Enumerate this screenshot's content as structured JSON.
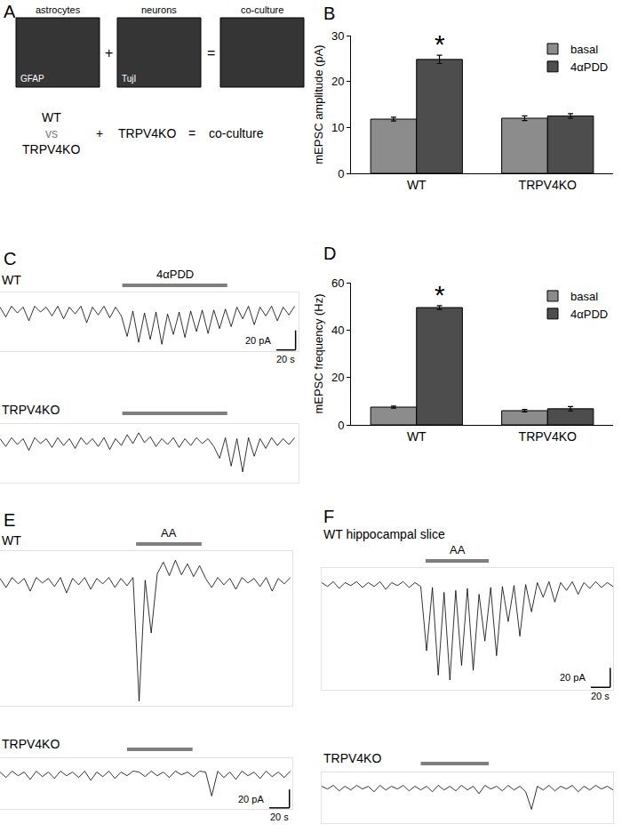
{
  "panel_a": {
    "label": "A",
    "images": [
      {
        "title": "astrocytes",
        "stain": "GFAP"
      },
      {
        "title": "neurons",
        "stain": "TujI"
      },
      {
        "title": "co-culture"
      }
    ],
    "image_operators": [
      "+",
      "="
    ],
    "scheme": {
      "left": [
        "WT",
        "vs",
        "TRPV4KO"
      ],
      "operators": [
        "+",
        "="
      ],
      "middle": "TRPV4KO",
      "result": "co-culture"
    }
  },
  "chart_data": [
    {
      "type": "bar",
      "panel": "B",
      "ylabel": "mEPSC amplitude (pA)",
      "categories": [
        "WT",
        "TRPV4KO"
      ],
      "series": [
        {
          "name": "basal",
          "color": "#8c8c8c",
          "values": [
            11.8,
            12.0
          ],
          "errors": [
            0.4,
            0.5
          ]
        },
        {
          "name": "4αPDD",
          "color": "#4d4d4d",
          "values": [
            24.8,
            12.5
          ],
          "errors": [
            0.9,
            0.5
          ]
        }
      ],
      "ylim": [
        0,
        30
      ],
      "yticks": [
        0,
        10,
        20,
        30
      ],
      "grid": false,
      "legend": "top right",
      "annotations": [
        {
          "text": "*",
          "category": "WT",
          "series": "4αPDD"
        }
      ]
    },
    {
      "type": "bar",
      "panel": "D",
      "ylabel": "mEPSC frequency (Hz)",
      "categories": [
        "WT",
        "TRPV4KO"
      ],
      "series": [
        {
          "name": "basal",
          "color": "#8c8c8c",
          "values": [
            7.5,
            6.0
          ],
          "errors": [
            0.4,
            0.5
          ]
        },
        {
          "name": "4αPDD",
          "color": "#4d4d4d",
          "values": [
            49.5,
            6.8
          ],
          "errors": [
            0.8,
            0.9
          ]
        }
      ],
      "ylim": [
        0,
        60
      ],
      "yticks": [
        0,
        20,
        40,
        60
      ],
      "grid": false,
      "legend": "top right",
      "annotations": [
        {
          "text": "*",
          "category": "WT",
          "series": "4αPDD"
        }
      ]
    },
    {
      "type": "line",
      "panel": "C",
      "title": "WT",
      "color": "#000000",
      "tick_labels": false,
      "xlim": [
        0,
        310
      ],
      "ylim": [
        -45,
        15
      ],
      "treatment": {
        "label": "4αPDD",
        "start": 127,
        "end": 236
      },
      "scalebar": {
        "x": 20,
        "y": 20,
        "x_label": "20 s",
        "y_label": "20 pA"
      },
      "x": [
        0,
        6,
        12,
        18,
        24,
        30,
        36,
        42,
        48,
        54,
        60,
        66,
        72,
        78,
        84,
        90,
        96,
        102,
        108,
        114,
        120,
        126,
        132,
        138,
        144,
        150,
        156,
        162,
        168,
        174,
        180,
        186,
        192,
        198,
        204,
        210,
        216,
        222,
        228,
        234,
        240,
        246,
        252,
        258,
        264,
        270,
        276,
        282,
        288,
        294,
        300,
        306
      ],
      "values": [
        0,
        -10,
        1,
        -6,
        0,
        -14,
        1,
        -5,
        0,
        -9,
        1,
        -12,
        0,
        -7,
        1,
        -16,
        0,
        -8,
        1,
        -11,
        0,
        -9,
        -30,
        -4,
        -36,
        -6,
        -33,
        -5,
        -38,
        -7,
        -28,
        -5,
        -31,
        -4,
        -25,
        -3,
        -27,
        -3,
        -22,
        -2,
        -20,
        0,
        -12,
        1,
        -18,
        0,
        -9,
        1,
        -14,
        0,
        -8,
        1
      ]
    },
    {
      "type": "line",
      "title": "TRPV4KO",
      "color": "#000000",
      "tick_labels": false,
      "xlim": [
        0,
        310
      ],
      "ylim": [
        -45,
        15
      ],
      "treatment": {
        "start": 127,
        "end": 236
      },
      "x": [
        0,
        6,
        12,
        18,
        24,
        30,
        36,
        42,
        48,
        54,
        60,
        66,
        72,
        78,
        84,
        90,
        96,
        102,
        108,
        114,
        120,
        126,
        132,
        138,
        144,
        150,
        156,
        162,
        168,
        174,
        180,
        186,
        192,
        198,
        204,
        210,
        216,
        222,
        228,
        234,
        240,
        246,
        252,
        258,
        264,
        270,
        276,
        282,
        288,
        294,
        300,
        306
      ],
      "values": [
        0,
        -8,
        1,
        -6,
        0,
        -12,
        1,
        -5,
        0,
        -9,
        1,
        -7,
        0,
        -10,
        1,
        -6,
        0,
        -8,
        1,
        -11,
        0,
        -7,
        4,
        -5,
        6,
        -4,
        2,
        -8,
        0,
        -6,
        1,
        -9,
        0,
        -7,
        1,
        -5,
        0,
        -8,
        -20,
        1,
        -28,
        0,
        -34,
        1,
        -18,
        0,
        -10,
        1,
        -7,
        0,
        -6,
        1
      ]
    },
    {
      "type": "line",
      "panel": "E",
      "title": "WT",
      "color": "#000000",
      "tick_labels": false,
      "xlim": [
        0,
        290
      ],
      "ylim": [
        -140,
        30
      ],
      "treatment": {
        "label": "AA",
        "start": 135,
        "end": 200
      },
      "x": [
        0,
        6,
        12,
        18,
        24,
        30,
        36,
        42,
        48,
        54,
        60,
        66,
        72,
        78,
        84,
        90,
        96,
        102,
        108,
        114,
        120,
        126,
        132,
        138,
        144,
        150,
        156,
        162,
        168,
        174,
        180,
        186,
        192,
        198,
        204,
        210,
        216,
        222,
        228,
        234,
        240,
        246,
        252,
        258,
        264,
        270,
        276,
        282,
        288
      ],
      "values": [
        0,
        -10,
        1,
        -6,
        0,
        -14,
        1,
        -5,
        0,
        -9,
        1,
        -16,
        0,
        -7,
        1,
        -12,
        0,
        -6,
        1,
        -10,
        0,
        -8,
        1,
        -135,
        -2,
        -60,
        5,
        18,
        3,
        20,
        4,
        16,
        2,
        14,
        0,
        -10,
        1,
        -7,
        0,
        -12,
        1,
        -5,
        0,
        -9,
        1,
        -14,
        0,
        -6,
        1
      ]
    },
    {
      "type": "line",
      "title": "TRPV4KO",
      "color": "#000000",
      "tick_labels": false,
      "xlim": [
        0,
        290
      ],
      "ylim": [
        -40,
        15
      ],
      "treatment": {
        "start": 126,
        "end": 191
      },
      "scalebar": {
        "x": 20,
        "y": 20,
        "x_label": "20 s",
        "y_label": "20 pA"
      },
      "x": [
        0,
        6,
        12,
        18,
        24,
        30,
        36,
        42,
        48,
        54,
        60,
        66,
        72,
        78,
        84,
        90,
        96,
        102,
        108,
        114,
        120,
        126,
        132,
        138,
        144,
        150,
        156,
        162,
        168,
        174,
        180,
        186,
        192,
        198,
        204,
        210,
        216,
        222,
        228,
        234,
        240,
        246,
        252,
        258,
        264,
        270,
        276,
        282,
        288
      ],
      "values": [
        0,
        -6,
        1,
        -4,
        0,
        -8,
        1,
        -5,
        0,
        -7,
        1,
        -4,
        0,
        -6,
        1,
        -9,
        0,
        -5,
        1,
        -7,
        0,
        -4,
        1,
        0,
        -5,
        1,
        -4,
        0,
        -6,
        1,
        -3,
        0,
        -5,
        1,
        0,
        -26,
        1,
        -6,
        0,
        -8,
        1,
        -4,
        0,
        -7,
        1,
        -5,
        0,
        -6,
        1
      ]
    },
    {
      "type": "line",
      "panel": "F",
      "title": "WT hippocampal slice",
      "color": "#000000",
      "tick_labels": false,
      "xlim": [
        0,
        300
      ],
      "ylim": [
        -110,
        15
      ],
      "treatment": {
        "label": "AA",
        "start": 107,
        "end": 172
      },
      "scalebar": {
        "x": 20,
        "y": 20,
        "x_label": "20 s",
        "y_label": "20 pA"
      },
      "x": [
        0,
        6,
        12,
        18,
        24,
        30,
        36,
        42,
        48,
        54,
        60,
        66,
        72,
        78,
        84,
        90,
        96,
        102,
        108,
        114,
        120,
        126,
        132,
        138,
        144,
        150,
        156,
        162,
        168,
        174,
        180,
        186,
        192,
        198,
        204,
        210,
        216,
        222,
        228,
        234,
        240,
        246,
        252,
        258,
        264,
        270,
        276,
        282,
        288,
        294,
        300
      ],
      "values": [
        0,
        -4,
        1,
        -6,
        0,
        -3,
        1,
        -5,
        0,
        -4,
        1,
        -7,
        0,
        -3,
        1,
        -5,
        0,
        -4,
        -70,
        -5,
        -95,
        -10,
        -100,
        -8,
        -85,
        -6,
        -90,
        -12,
        -60,
        -5,
        -75,
        -4,
        -40,
        -3,
        -55,
        -2,
        -30,
        0,
        -15,
        1,
        -20,
        0,
        -8,
        1,
        -12,
        0,
        -6,
        1,
        -5,
        0,
        -4
      ]
    },
    {
      "type": "line",
      "title": "TRPV4KO",
      "color": "#000000",
      "tick_labels": false,
      "xlim": [
        0,
        300
      ],
      "ylim": [
        -40,
        15
      ],
      "treatment": {
        "start": 102,
        "end": 172
      },
      "x": [
        0,
        6,
        12,
        18,
        24,
        30,
        36,
        42,
        48,
        54,
        60,
        66,
        72,
        78,
        84,
        90,
        96,
        102,
        108,
        114,
        120,
        126,
        132,
        138,
        144,
        150,
        156,
        162,
        168,
        174,
        180,
        186,
        192,
        198,
        204,
        210,
        216,
        222,
        228,
        234,
        240,
        246,
        252,
        258,
        264,
        270,
        276,
        282,
        288,
        294,
        300
      ],
      "values": [
        0,
        -3,
        1,
        -5,
        0,
        -4,
        1,
        -3,
        0,
        -6,
        1,
        -4,
        0,
        -3,
        1,
        -5,
        0,
        -4,
        0,
        -6,
        1,
        -4,
        0,
        -5,
        1,
        -4,
        0,
        -8,
        1,
        -3,
        0,
        -5,
        1,
        -4,
        0,
        -6,
        -25,
        0,
        -4,
        1,
        -5,
        0,
        -3,
        1,
        -6,
        0,
        -4,
        1,
        -3,
        0,
        -4
      ]
    }
  ]
}
